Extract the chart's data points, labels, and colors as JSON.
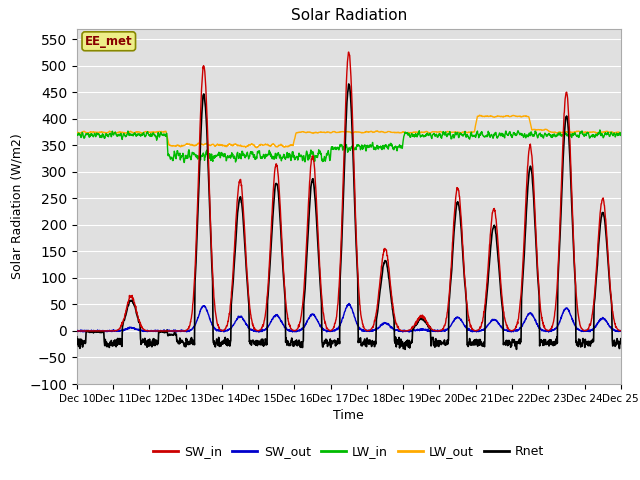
{
  "title": "Solar Radiation",
  "xlabel": "Time",
  "ylabel": "Solar Radiation (W/m2)",
  "ylim": [
    -100,
    570
  ],
  "yticks": [
    -100,
    -50,
    0,
    50,
    100,
    150,
    200,
    250,
    300,
    350,
    400,
    450,
    500,
    550
  ],
  "annotation": "EE_met",
  "bg_color": "#e0e0e0",
  "line_colors": {
    "SW_in": "#cc0000",
    "SW_out": "#0000cc",
    "LW_in": "#00bb00",
    "LW_out": "#ffaa00",
    "Rnet": "#000000"
  },
  "line_widths": {
    "SW_in": 1.0,
    "SW_out": 1.0,
    "LW_in": 1.0,
    "LW_out": 1.0,
    "Rnet": 1.2
  },
  "n_days": 15,
  "start_day": 10
}
